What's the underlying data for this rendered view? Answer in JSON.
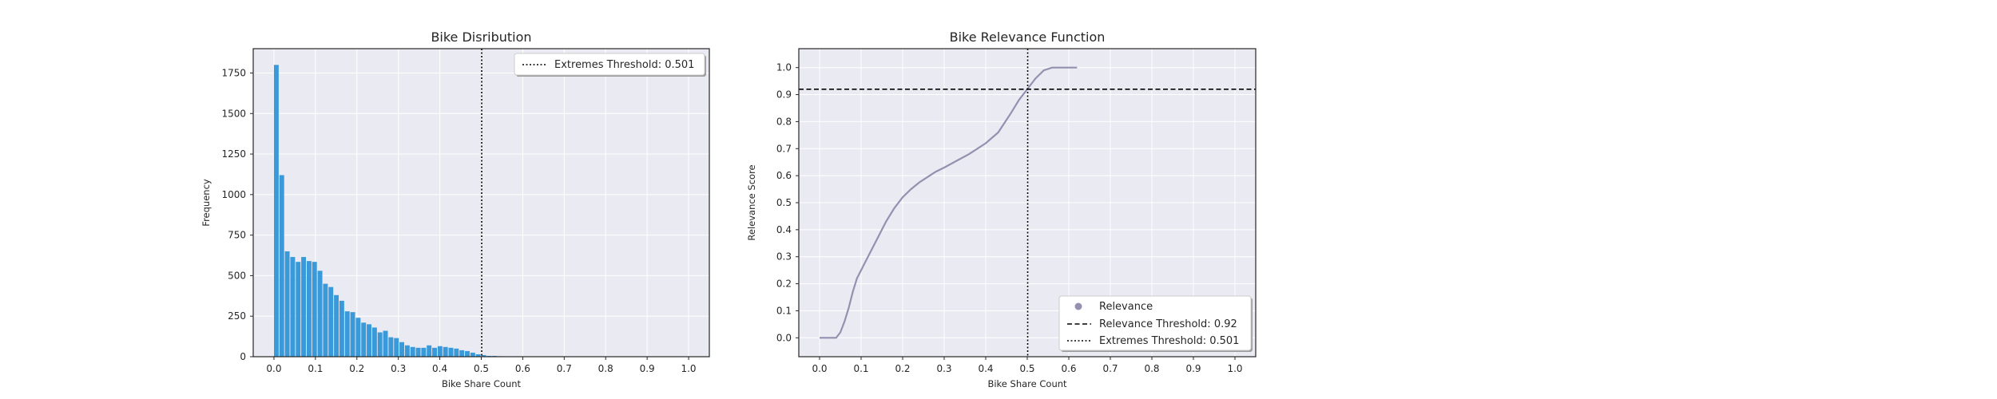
{
  "chart_data": [
    {
      "type": "bar",
      "title": "Bike Disribution",
      "xlabel": "Bike Share Count",
      "ylabel": "Frequency",
      "xlim": [
        -0.05,
        1.05
      ],
      "ylim": [
        0,
        1900
      ],
      "xticks": [
        "0.0",
        "0.1",
        "0.2",
        "0.3",
        "0.4",
        "0.5",
        "0.6",
        "0.7",
        "0.8",
        "0.9",
        "1.0"
      ],
      "yticks": [
        "0",
        "250",
        "500",
        "750",
        "1000",
        "1250",
        "1500",
        "1750"
      ],
      "grid": true,
      "legend_position": "top-right",
      "bar_color": "#3a9ad9",
      "bin_width": 0.01316,
      "bin_start": 0.0,
      "values": [
        1800,
        1120,
        650,
        615,
        585,
        615,
        590,
        585,
        530,
        450,
        430,
        380,
        345,
        280,
        275,
        240,
        210,
        200,
        180,
        150,
        160,
        120,
        115,
        90,
        70,
        60,
        55,
        55,
        70,
        55,
        65,
        60,
        55,
        50,
        40,
        35,
        25,
        15,
        10,
        5,
        5,
        3,
        2,
        2,
        2,
        1,
        1,
        1,
        1,
        1,
        1,
        1,
        1,
        1,
        1,
        1,
        1,
        1,
        1,
        1,
        1,
        1,
        1,
        1,
        1,
        1,
        1,
        1,
        1,
        1,
        1,
        1,
        1,
        1,
        1,
        1
      ],
      "threshold": {
        "value": 0.501,
        "style": "dotted",
        "label": "Extremes Threshold: 0.501"
      }
    },
    {
      "type": "line",
      "title": "Bike Relevance Function",
      "xlabel": "Bike Share Count",
      "ylabel": "Relevance Score",
      "xlim": [
        -0.05,
        1.05
      ],
      "ylim": [
        -0.07,
        1.07
      ],
      "xticks": [
        "0.0",
        "0.1",
        "0.2",
        "0.3",
        "0.4",
        "0.5",
        "0.6",
        "0.7",
        "0.8",
        "0.9",
        "1.0"
      ],
      "yticks": [
        "0.0",
        "0.1",
        "0.2",
        "0.3",
        "0.4",
        "0.5",
        "0.6",
        "0.7",
        "0.8",
        "0.9",
        "1.0"
      ],
      "grid": true,
      "legend_position": "bottom-right",
      "line_color": "#9590b0",
      "series": [
        {
          "name": "Relevance",
          "x": [
            0.0,
            0.04,
            0.05,
            0.06,
            0.07,
            0.08,
            0.09,
            0.1,
            0.12,
            0.14,
            0.16,
            0.18,
            0.2,
            0.22,
            0.24,
            0.26,
            0.28,
            0.3,
            0.33,
            0.36,
            0.4,
            0.43,
            0.46,
            0.48,
            0.5,
            0.52,
            0.54,
            0.56,
            0.6,
            0.62
          ],
          "y": [
            0.0,
            0.0,
            0.02,
            0.06,
            0.11,
            0.17,
            0.22,
            0.25,
            0.31,
            0.37,
            0.43,
            0.48,
            0.52,
            0.55,
            0.575,
            0.595,
            0.615,
            0.63,
            0.655,
            0.68,
            0.72,
            0.76,
            0.83,
            0.88,
            0.92,
            0.96,
            0.99,
            1.0,
            1.0,
            1.0
          ]
        }
      ],
      "relevance_threshold": {
        "value": 0.92,
        "style": "dashed",
        "label": "Relevance Threshold: 0.92"
      },
      "extremes_threshold": {
        "value": 0.501,
        "style": "dotted",
        "label": "Extremes Threshold: 0.501"
      }
    }
  ]
}
